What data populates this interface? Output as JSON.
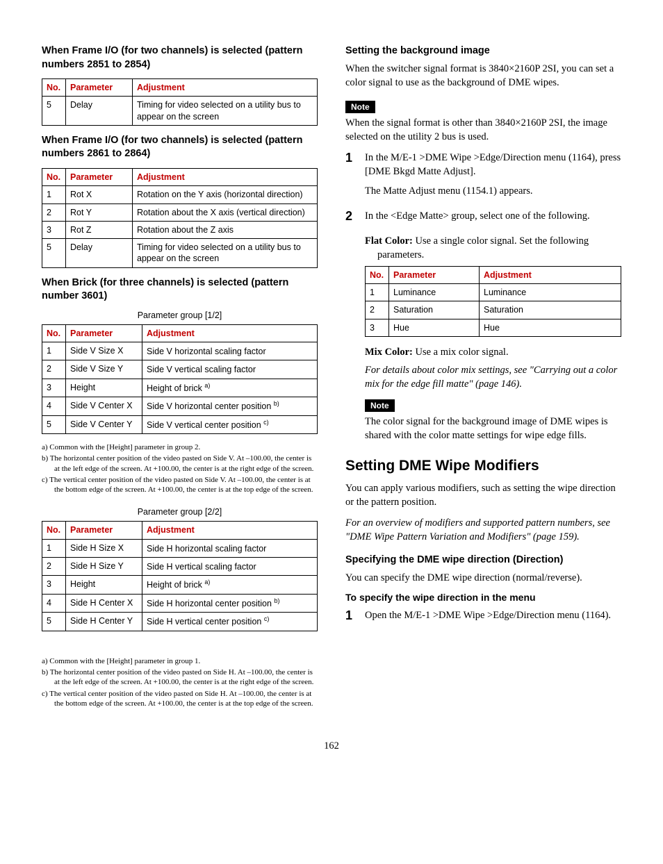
{
  "left": {
    "sec1": {
      "heading": "When Frame I/O (for two channels) is selected (pattern numbers 2851 to 2854)",
      "table": {
        "headers": [
          "No.",
          "Parameter",
          "Adjustment"
        ],
        "rows": [
          [
            "5",
            "Delay",
            "Timing for video selected on a utility bus to appear on the screen"
          ]
        ]
      }
    },
    "sec2": {
      "heading": "When Frame I/O (for two channels) is selected (pattern numbers 2861 to 2864)",
      "table": {
        "headers": [
          "No.",
          "Parameter",
          "Adjustment"
        ],
        "rows": [
          [
            "1",
            "Rot X",
            "Rotation on the Y axis (horizontal direction)"
          ],
          [
            "2",
            "Rot Y",
            "Rotation about the X axis (vertical direction)"
          ],
          [
            "3",
            "Rot Z",
            "Rotation about the Z axis"
          ],
          [
            "5",
            "Delay",
            "Timing for video selected on a utility bus to appear on the screen"
          ]
        ]
      }
    },
    "sec3": {
      "heading": "When Brick (for three channels) is selected (pattern number 3601)",
      "group1_caption": "Parameter group [1/2]",
      "table1": {
        "headers": [
          "No.",
          "Parameter",
          "Adjustment"
        ],
        "rows": [
          [
            "1",
            "Side V Size X",
            "Side V horizontal scaling factor",
            ""
          ],
          [
            "2",
            "Side V Size Y",
            "Side V vertical scaling factor",
            ""
          ],
          [
            "3",
            "Height",
            "Height of brick ",
            "a)"
          ],
          [
            "4",
            "Side V Center X",
            "Side V horizontal center position ",
            "b)"
          ],
          [
            "5",
            "Side V Center Y",
            "Side V vertical center position ",
            "c)"
          ]
        ]
      },
      "fn1": [
        "a) Common with the [Height] parameter in group 2.",
        "b) The horizontal center position of the video pasted on Side V. At –100.00, the center is at the left edge of the screen. At +100.00, the center is at the right edge of the screen.",
        "c) The vertical center position of the video pasted on Side V. At –100.00, the center is at the bottom edge of the screen. At +100.00, the center is at the top edge of the screen."
      ],
      "group2_caption": "Parameter group [2/2]",
      "table2": {
        "headers": [
          "No.",
          "Parameter",
          "Adjustment"
        ],
        "rows": [
          [
            "1",
            "Side H Size X",
            "Side H horizontal scaling factor",
            ""
          ],
          [
            "2",
            "Side H Size Y",
            "Side H vertical scaling factor",
            ""
          ],
          [
            "3",
            "Height",
            "Height of brick ",
            "a)"
          ],
          [
            "4",
            "Side H Center X",
            "Side H horizontal center position ",
            "b)"
          ],
          [
            "5",
            "Side H Center Y",
            "Side H vertical center position ",
            "c)"
          ]
        ]
      },
      "fn2": [
        "a) Common with the [Height] parameter in group 1.",
        "b) The horizontal center position of the video pasted on Side H. At –100.00, the center is at the left edge of the screen. At +100.00, the center is at the right edge of the screen.",
        "c) The vertical center position of the video pasted on Side H. At –100.00, the center is at the bottom edge of the screen. At +100.00, the center is at the top edge of the screen."
      ]
    }
  },
  "right": {
    "bg": {
      "heading": "Setting the background image",
      "p1": "When the switcher signal format is 3840×2160P 2SI, you can set a color signal to use as the background of DME wipes.",
      "note_label": "Note",
      "note1": "When the signal format is other than 3840×2160P 2SI, the image selected on the utility 2 bus is used.",
      "step1_a": "In the M/E-1 >DME Wipe >Edge/Direction menu (1164), press [DME Bkgd Matte Adjust].",
      "step1_b": "The Matte Adjust menu (1154.1) appears.",
      "step2_a": "In the <Edge Matte> group, select one of the following.",
      "flat_label": "Flat Color:",
      "flat_text": " Use a single color signal. Set the following parameters.",
      "table": {
        "headers": [
          "No.",
          "Parameter",
          "Adjustment"
        ],
        "rows": [
          [
            "1",
            "Luminance",
            "Luminance"
          ],
          [
            "2",
            "Saturation",
            "Saturation"
          ],
          [
            "3",
            "Hue",
            "Hue"
          ]
        ]
      },
      "mix_label": "Mix Color:",
      "mix_text": " Use a mix color signal.",
      "mix_detail": "For details about color mix settings, see \"Carrying out a color mix for the edge fill matte\" (page 146).",
      "note2": "The color signal for the background image of DME wipes is shared with the color matte settings for wipe edge fills."
    },
    "mod": {
      "h1": "Setting DME Wipe Modifiers",
      "p1": "You can apply various modifiers, such as setting the wipe direction or the pattern position.",
      "p2": "For an overview of modifiers and supported pattern numbers, see \"DME Wipe Pattern Variation and Modifiers\" (page 159).",
      "sub": "Specifying the DME wipe direction (Direction)",
      "p3": "You can specify the DME wipe direction (normal/reverse).",
      "h4": "To specify the wipe direction in the menu",
      "step1": "Open the M/E-1 >DME Wipe >Edge/Direction menu (1164)."
    }
  },
  "page_number": "162",
  "colors": {
    "header_red": "#c00000",
    "text": "#000000",
    "bg": "#ffffff"
  }
}
